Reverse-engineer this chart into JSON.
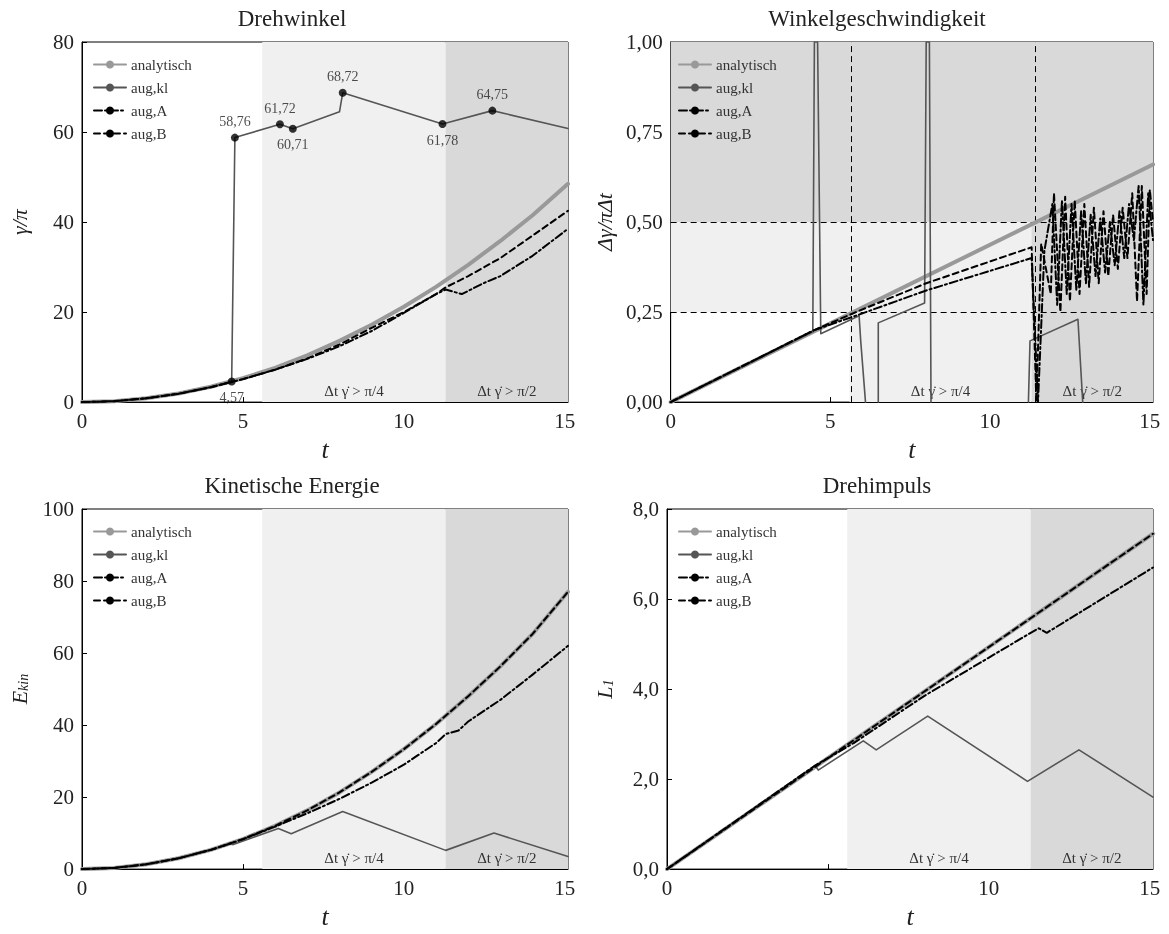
{
  "chart_data": [
    {
      "type": "line",
      "title": "Drehwinkel",
      "xlabel": "t",
      "ylabel": "γ/π",
      "xlim": [
        0,
        15.1
      ],
      "xticks": [
        0,
        5,
        10,
        15
      ],
      "ylim": [
        0,
        80
      ],
      "yticks": [
        0,
        20,
        40,
        60,
        80
      ],
      "legend": "top left",
      "grid": false,
      "bands": [
        {
          "axis": "x",
          "from": 5.6,
          "to": 11.3,
          "label": "Δt γ̇ > π/4",
          "color": "#f0f0f0"
        },
        {
          "axis": "x",
          "from": 11.3,
          "to": 15.1,
          "label": "Δt γ̇ > π/2",
          "color": "#d9d9d9"
        }
      ],
      "series": [
        {
          "name": "analytisch",
          "color": "#999999",
          "line_style": "solid",
          "x": [
            0,
            1,
            2,
            3,
            4,
            5,
            6,
            7,
            8,
            9,
            10,
            11,
            12,
            13,
            14,
            15.1
          ],
          "values": [
            0,
            0.2,
            0.85,
            1.9,
            3.4,
            5.3,
            7.6,
            10.4,
            13.6,
            17.2,
            21.2,
            25.6,
            30.5,
            35.8,
            41.5,
            48.5
          ]
        },
        {
          "name": "aug,kl",
          "color": "#555555",
          "line_style": "solid",
          "x": [
            0,
            1,
            2,
            3,
            4,
            4.65,
            4.75,
            6.15,
            6.55,
            8.0,
            8.1,
            11.2,
            12.75,
            15.1
          ],
          "values": [
            0,
            0.2,
            0.85,
            1.9,
            3.4,
            4.57,
            58.76,
            61.72,
            60.71,
            64.5,
            68.72,
            61.78,
            64.75,
            60.8
          ]
        },
        {
          "name": "aug,A",
          "color": "#000000",
          "line_style": "dashdot",
          "x": [
            0,
            1,
            2,
            3,
            4,
            5,
            6,
            7,
            8,
            9,
            10,
            11,
            11.3,
            11.8,
            12.5,
            13,
            14,
            15.1
          ],
          "values": [
            0,
            0.2,
            0.85,
            1.85,
            3.3,
            5.1,
            7.2,
            9.6,
            12.4,
            15.8,
            19.8,
            24,
            25,
            24,
            26.5,
            28,
            32.5,
            38.5
          ]
        },
        {
          "name": "aug,B",
          "color": "#000000",
          "line_style": "dashed",
          "x": [
            0,
            1,
            2,
            3,
            4,
            5,
            6,
            7,
            8,
            9,
            10,
            11,
            11.3,
            12,
            13,
            14,
            15.1
          ],
          "values": [
            0,
            0.2,
            0.85,
            1.85,
            3.3,
            5.1,
            7.2,
            9.7,
            12.8,
            16.5,
            20,
            24,
            25.5,
            28,
            32,
            37,
            42.5
          ]
        },
        {
          "type": "scatter",
          "color": "#000000",
          "marker": "circle",
          "x": [
            4.65,
            4.75,
            6.15,
            6.55,
            8.1,
            11.2,
            12.75
          ],
          "values": [
            4.57,
            58.76,
            61.72,
            60.71,
            68.72,
            61.78,
            64.75
          ],
          "value_labels": [
            "4,57",
            "58,76",
            "61,72",
            "60,71",
            "68,72",
            "61,78",
            "64,75"
          ]
        }
      ]
    },
    {
      "type": "line",
      "title": "Winkelgeschwindigkeit",
      "xlabel": "t",
      "ylabel": "Δγ/πΔt",
      "xlim": [
        0,
        15.1
      ],
      "xticks": [
        0,
        5,
        10,
        15
      ],
      "ylim": [
        0,
        1
      ],
      "yticks": [
        {
          "value": 0,
          "label": "0,00"
        },
        {
          "value": 0.25,
          "label": "0,25"
        },
        {
          "value": 0.5,
          "label": "0,50"
        },
        {
          "value": 0.75,
          "label": "0,75"
        },
        {
          "value": 1,
          "label": "1,00"
        }
      ],
      "legend": "top left",
      "grid": false,
      "bands": [
        {
          "axis": "y",
          "from": 0.25,
          "to": 0.5,
          "color": "#f0f0f0"
        },
        {
          "axis": "x",
          "from": 5.6,
          "to": 11.3,
          "label": "Δt γ̇ > π/4",
          "color": "#f0f0f0"
        },
        {
          "axis": "y",
          "from": 0.5,
          "to": 1,
          "color": "#d9d9d9"
        },
        {
          "axis": "x",
          "from": 11.3,
          "to": 15.1,
          "label": "Δt γ̇ > π/2",
          "color": "#d9d9d9"
        }
      ],
      "ref_lines": [
        {
          "axis": "y",
          "value": 0.25,
          "line_style": "dashed"
        },
        {
          "axis": "y",
          "value": 0.5,
          "line_style": "dashed"
        },
        {
          "axis": "x",
          "value": 5.65,
          "line_style": "dashed"
        },
        {
          "axis": "x",
          "value": 11.4,
          "line_style": "dashed"
        }
      ],
      "series": [
        {
          "name": "analytisch",
          "color": "#999999",
          "line_style": "solid",
          "x": [
            0,
            15.1
          ],
          "values": [
            0,
            0.66
          ]
        },
        {
          "name": "aug,kl",
          "color": "#555555",
          "line_style": "solid",
          "x": [
            0,
            4.45,
            4.5,
            4.6,
            4.7,
            5.9,
            5.95,
            6.1,
            6.3,
            6.5,
            6.5,
            7.95,
            8.0,
            8.1,
            8.15,
            9.5,
            11.2,
            11.25,
            12.75,
            12.9
          ],
          "values": [
            0,
            0.195,
            1,
            1,
            0.19,
            0.24,
            0.17,
            0,
            null,
            0,
            0.22,
            0.275,
            1,
            1,
            0,
            null,
            0,
            0.17,
            0.23,
            0
          ]
        },
        {
          "name": "aug,A",
          "color": "#000000",
          "line_style": "dashdot",
          "x": [
            0,
            4.5,
            5.8,
            8,
            11.3,
            11.5,
            11.7,
            11.95,
            12.1,
            12.25,
            12.4,
            12.55,
            12.7,
            12.85,
            13.0,
            13.15,
            13.3,
            13.45,
            13.6,
            13.75,
            13.9,
            14.05,
            14.2,
            14.35,
            14.5,
            14.65,
            14.8,
            14.95,
            15.1
          ],
          "values": [
            0,
            0.2,
            0.24,
            0.31,
            0.4,
            0,
            0.42,
            0.55,
            0.27,
            0.56,
            0.3,
            0.55,
            0.31,
            0.53,
            0.33,
            0.52,
            0.35,
            0.51,
            0.36,
            0.5,
            0.38,
            0.53,
            0.4,
            0.55,
            0.45,
            0.6,
            0.27,
            0.58,
            0.45
          ]
        },
        {
          "name": "aug,B",
          "color": "#000000",
          "line_style": "dashed",
          "x": [
            0,
            4.5,
            5.8,
            8,
            11.3,
            11.45,
            11.6,
            11.9,
            12.0,
            12.2,
            12.35,
            12.5,
            12.65,
            12.8,
            12.95,
            13.1,
            13.25,
            13.4,
            13.55,
            13.7,
            13.85,
            14.0,
            14.15,
            14.3,
            14.45,
            14.6,
            14.75,
            14.9,
            15.0,
            15.1
          ],
          "values": [
            0,
            0.2,
            0.25,
            0.33,
            0.43,
            0,
            0.44,
            0.3,
            0.58,
            0.25,
            0.57,
            0.28,
            0.56,
            0.3,
            0.55,
            0.32,
            0.54,
            0.33,
            0.53,
            0.35,
            0.52,
            0.37,
            0.54,
            0.4,
            0.58,
            0.28,
            0.6,
            0.3,
            0.59,
            0.5
          ]
        }
      ]
    },
    {
      "type": "line",
      "title": "Kinetische Energie",
      "xlabel": "t",
      "ylabel": "E$_{kin}$",
      "xlim": [
        0,
        15.1
      ],
      "xticks": [
        0,
        5,
        10,
        15
      ],
      "ylim": [
        0,
        100
      ],
      "yticks": [
        0,
        20,
        40,
        60,
        80,
        100
      ],
      "legend": "top left",
      "grid": false,
      "bands": [
        {
          "axis": "x",
          "from": 5.6,
          "to": 11.3,
          "label": "Δt γ̇ > π/4",
          "color": "#f0f0f0"
        },
        {
          "axis": "x",
          "from": 11.3,
          "to": 15.1,
          "label": "Δt γ̇ > π/2",
          "color": "#d9d9d9"
        }
      ],
      "series": [
        {
          "name": "analytisch",
          "color": "#999999",
          "line_style": "solid",
          "x": [
            0,
            1,
            2,
            3,
            4,
            5,
            6,
            7,
            8,
            9,
            10,
            11,
            12,
            13,
            14,
            15.1
          ],
          "values": [
            0,
            0.33,
            1.33,
            3,
            5.33,
            8.33,
            12,
            16.3,
            21.3,
            27,
            33.3,
            40.3,
            48,
            56.3,
            65.3,
            77
          ]
        },
        {
          "name": "aug,kl",
          "color": "#555555",
          "line_style": "solid",
          "x": [
            0,
            1,
            2,
            3,
            4,
            4.6,
            4.7,
            6.1,
            6.5,
            8.1,
            11.3,
            12.8,
            15.1
          ],
          "values": [
            0,
            0.33,
            1.33,
            3,
            5.33,
            7,
            6.8,
            11.3,
            9.8,
            16,
            5.2,
            10,
            3.5
          ]
        },
        {
          "name": "aug,A",
          "color": "#000000",
          "line_style": "dashdot",
          "x": [
            0,
            1,
            2,
            3,
            4,
            5,
            6,
            7,
            8,
            9,
            10,
            11,
            11.3,
            11.7,
            12,
            13,
            14,
            15.1
          ],
          "values": [
            0,
            0.33,
            1.33,
            3,
            5.33,
            8.3,
            11.8,
            15.5,
            19.5,
            24,
            29,
            35,
            37.5,
            38.5,
            41,
            47,
            54,
            62
          ]
        },
        {
          "name": "aug,B",
          "color": "#000000",
          "line_style": "dashed",
          "x": [
            0,
            1,
            2,
            3,
            4,
            5,
            6,
            7,
            8,
            9,
            10,
            11,
            12,
            13,
            14,
            15.1
          ],
          "values": [
            0,
            0.33,
            1.33,
            3,
            5.33,
            8.33,
            12,
            16.3,
            21.3,
            27,
            33.3,
            40.3,
            48,
            56.3,
            65.3,
            77
          ]
        }
      ]
    },
    {
      "type": "line",
      "title": "Drehimpuls",
      "xlabel": "t",
      "ylabel": "L$_{1}$",
      "xlim": [
        0,
        15.1
      ],
      "xticks": [
        0,
        5,
        10,
        15
      ],
      "ylim": [
        0,
        8
      ],
      "yticks": [
        {
          "value": 0,
          "label": "0,0"
        },
        {
          "value": 2,
          "label": "2,0"
        },
        {
          "value": 4,
          "label": "4,0"
        },
        {
          "value": 6,
          "label": "6,0"
        },
        {
          "value": 8,
          "label": "8,0"
        }
      ],
      "legend": "top left",
      "grid": false,
      "bands": [
        {
          "axis": "x",
          "from": 5.6,
          "to": 11.3,
          "label": "Δt γ̇ > π/4",
          "color": "#f0f0f0"
        },
        {
          "axis": "x",
          "from": 11.3,
          "to": 15.1,
          "label": "Δt γ̇ > π/2",
          "color": "#d9d9d9"
        }
      ],
      "series": [
        {
          "name": "analytisch",
          "color": "#999999",
          "line_style": "solid",
          "x": [
            0,
            15.1
          ],
          "values": [
            0,
            7.45
          ]
        },
        {
          "name": "aug,kl",
          "color": "#555555",
          "line_style": "solid",
          "x": [
            0,
            4.6,
            4.7,
            6.1,
            6.5,
            8.1,
            11.2,
            12.8,
            15.1
          ],
          "values": [
            0,
            2.3,
            2.2,
            2.85,
            2.65,
            3.4,
            1.95,
            2.65,
            1.6
          ]
        },
        {
          "name": "aug,A",
          "color": "#000000",
          "line_style": "dashdot",
          "x": [
            0,
            4.6,
            5.8,
            8,
            11.3,
            11.55,
            11.8,
            15.1
          ],
          "values": [
            0,
            2.3,
            2.8,
            3.85,
            5.25,
            5.35,
            5.25,
            6.7
          ]
        },
        {
          "name": "aug,B",
          "color": "#000000",
          "line_style": "dashed",
          "x": [
            0,
            15.1
          ],
          "values": [
            0,
            7.45
          ]
        }
      ]
    }
  ]
}
